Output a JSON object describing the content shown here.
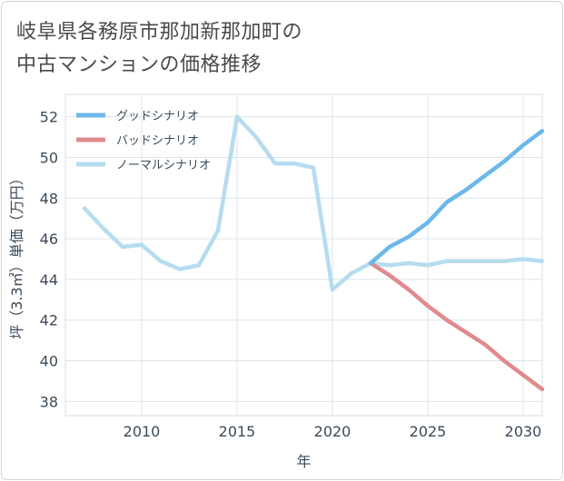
{
  "title": {
    "line1": "岐阜県各務原市那加新那加町の",
    "line2": "中古マンションの価格推移"
  },
  "chart_data": {
    "type": "line",
    "xlabel": "年",
    "ylabel": "坪（3.3㎡）単価（万円）",
    "xlim": [
      2006,
      2031
    ],
    "ylim": [
      37.3,
      53.1
    ],
    "xticks": [
      2010,
      2015,
      2020,
      2025,
      2030
    ],
    "yticks": [
      38,
      40,
      42,
      44,
      46,
      48,
      50,
      52
    ],
    "legend_position": "top-left",
    "series": [
      {
        "name": "グッドシナリオ",
        "color": "#6cb8ea",
        "x": [
          2022,
          2023,
          2024,
          2025,
          2026,
          2027,
          2028,
          2029,
          2030,
          2031
        ],
        "y": [
          44.8,
          45.6,
          46.1,
          46.8,
          47.8,
          48.4,
          49.1,
          49.8,
          50.6,
          51.3
        ]
      },
      {
        "name": "バッドシナリオ",
        "color": "#e08a8e",
        "x": [
          2022,
          2023,
          2024,
          2025,
          2026,
          2027,
          2028,
          2029,
          2030,
          2031
        ],
        "y": [
          44.8,
          44.2,
          43.5,
          42.7,
          42.0,
          41.4,
          40.8,
          40.0,
          39.3,
          38.6
        ]
      },
      {
        "name": "ノーマルシナリオ",
        "color": "#b6dcef",
        "x": [
          2007,
          2008,
          2009,
          2010,
          2011,
          2012,
          2013,
          2014,
          2015,
          2016,
          2017,
          2018,
          2019,
          2020,
          2021,
          2022,
          2023,
          2024,
          2025,
          2026,
          2027,
          2028,
          2029,
          2030,
          2031
        ],
        "y": [
          47.5,
          46.5,
          45.6,
          45.7,
          44.9,
          44.5,
          44.7,
          46.4,
          52.0,
          51.0,
          49.7,
          49.7,
          49.5,
          43.5,
          44.3,
          44.8,
          44.7,
          44.8,
          44.7,
          44.9,
          44.9,
          44.9,
          44.9,
          45.0,
          44.9
        ]
      }
    ]
  }
}
